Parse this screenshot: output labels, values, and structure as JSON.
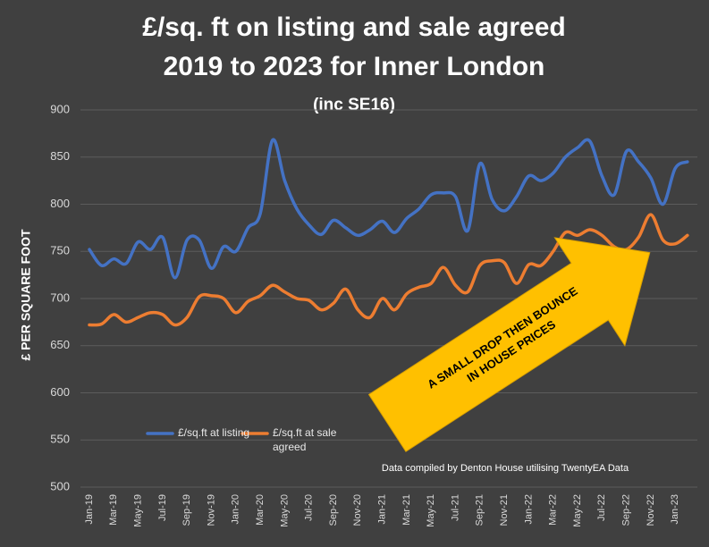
{
  "chart_data": {
    "type": "line",
    "title_lines": [
      "£/sq. ft on listing and sale agreed",
      "2019 to 2023 for Inner London"
    ],
    "subtitle": "(inc SE16)",
    "y_label": "£ PER SQUARE FOOT",
    "source": "Data compiled by Denton House utilising TwentyEA Data",
    "annotation_lines": [
      "A SMALL DROP THEN BOUNCE",
      "IN HOUSE PRICES"
    ],
    "annotation_color": "#ffc000",
    "categories": [
      "Jan-19",
      null,
      "Mar-19",
      null,
      "May-19",
      null,
      "Jul-19",
      null,
      "Sep-19",
      null,
      "Nov-19",
      null,
      "Jan-20",
      null,
      "Mar-20",
      null,
      "May-20",
      null,
      "Jul-20",
      null,
      "Sep-20",
      null,
      "Nov-20",
      null,
      "Jan-21",
      null,
      "Mar-21",
      null,
      "May-21",
      null,
      "Jul-21",
      null,
      "Sep-21",
      null,
      "Nov-21",
      null,
      "Jan-22",
      null,
      "Mar-22",
      null,
      "May-22",
      null,
      "Jul-22",
      null,
      "Sep-22",
      null,
      "Nov-22",
      null,
      "Jan-23",
      null
    ],
    "series": [
      {
        "name": "£/sq.ft at listing",
        "color": "#4472c4",
        "values": [
          752,
          735,
          742,
          737,
          760,
          752,
          765,
          722,
          762,
          762,
          732,
          755,
          750,
          775,
          790,
          868,
          825,
          795,
          778,
          768,
          783,
          775,
          767,
          773,
          782,
          770,
          785,
          795,
          810,
          812,
          808,
          772,
          843,
          805,
          793,
          808,
          830,
          825,
          833,
          850,
          860,
          867,
          830,
          810,
          856,
          845,
          828,
          800,
          838,
          845
        ]
      },
      {
        "name": "£/sq.ft at sale agreed",
        "color": "#ed7d31",
        "values": [
          672,
          673,
          683,
          675,
          680,
          685,
          683,
          672,
          680,
          702,
          703,
          700,
          685,
          697,
          703,
          714,
          707,
          700,
          698,
          688,
          695,
          710,
          688,
          680,
          700,
          688,
          705,
          712,
          716,
          733,
          714,
          707,
          735,
          740,
          738,
          716,
          736,
          735,
          750,
          770,
          767,
          773,
          767,
          755,
          752,
          765,
          789,
          762,
          758,
          767
        ]
      }
    ],
    "ylim": [
      500,
      900
    ],
    "yticks": [
      500,
      550,
      600,
      650,
      700,
      750,
      800,
      850,
      900
    ],
    "grid": true
  }
}
